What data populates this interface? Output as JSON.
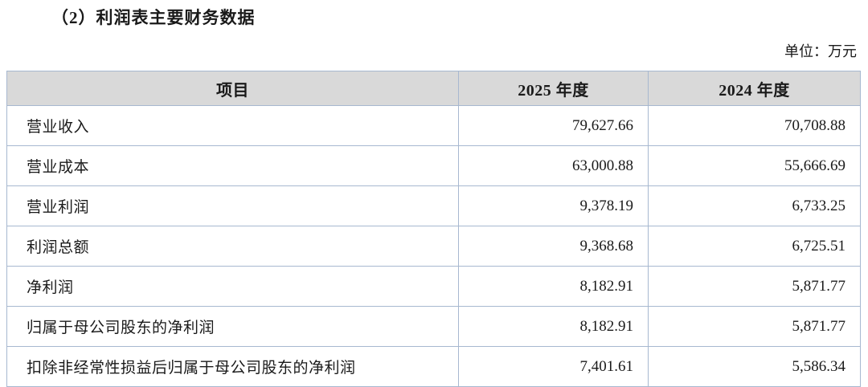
{
  "page": {
    "title": "（2）利润表主要财务数据",
    "unit_label": "单位：万元"
  },
  "table": {
    "columns": [
      "项目",
      "2025 年度",
      "2024 年度"
    ],
    "rows": [
      {
        "label": "营业收入",
        "y2025": "79,627.66",
        "y2024": "70,708.88"
      },
      {
        "label": "营业成本",
        "y2025": "63,000.88",
        "y2024": "55,666.69"
      },
      {
        "label": "营业利润",
        "y2025": "9,378.19",
        "y2024": "6,733.25"
      },
      {
        "label": "利润总额",
        "y2025": "9,368.68",
        "y2024": "6,725.51"
      },
      {
        "label": "净利润",
        "y2025": "8,182.91",
        "y2024": "5,871.77"
      },
      {
        "label": "归属于母公司股东的净利润",
        "y2025": "8,182.91",
        "y2024": "5,871.77"
      },
      {
        "label": "扣除非经常性损益后归属于母公司股东的净利润",
        "y2025": "7,401.61",
        "y2024": "5,586.34"
      }
    ],
    "colors": {
      "header_bg": "#d9d9d9",
      "border": "#a7b8d0",
      "text": "#1a1a1a"
    }
  }
}
